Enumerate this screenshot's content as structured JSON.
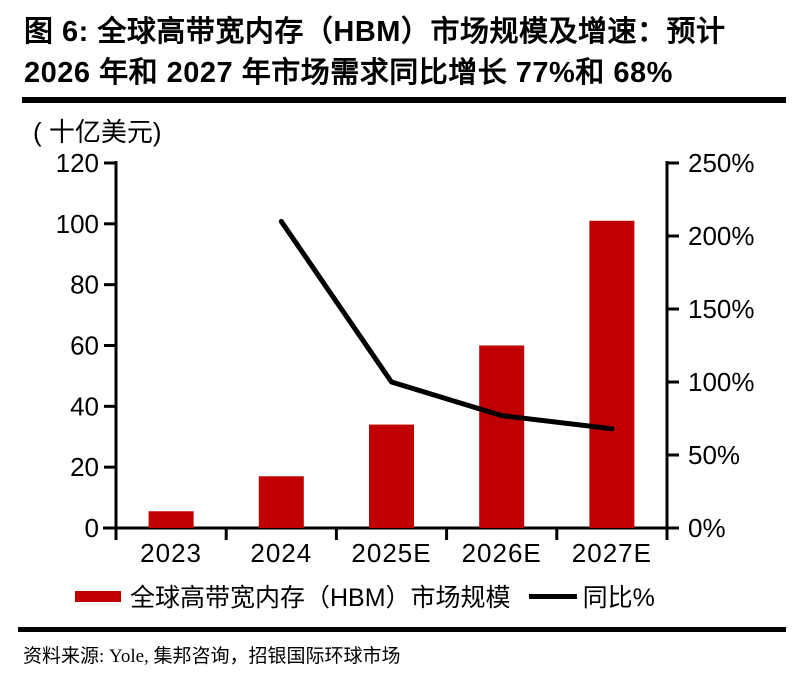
{
  "page": {
    "title_line1": "图 6: 全球高带宽内存（HBM）市场规模及增速：预计",
    "title_line2": "2026 年和 2027 年市场需求同比增长 77%和 68%",
    "source": "资料来源: Yole, 集邦咨询，招银国际环球市场"
  },
  "legend": {
    "bar_label": "全球高带宽内存（HBM）市场规模",
    "line_label": "同比%"
  },
  "colors": {
    "bar": "#c00000",
    "line": "#000000",
    "axis": "#000000",
    "text": "#000000"
  },
  "chart_data": {
    "type": "bar",
    "title": "全球高带宽内存（HBM）市场规模及增速",
    "categories": [
      "2023",
      "2024",
      "2025E",
      "2026E",
      "2027E"
    ],
    "series": [
      {
        "name": "全球高带宽内存（HBM）市场规模",
        "type": "bar",
        "axis": "left",
        "unit": "十亿美元",
        "values": [
          5.5,
          17,
          34,
          60,
          101
        ],
        "color": "#c00000"
      },
      {
        "name": "同比%",
        "type": "line",
        "axis": "right",
        "unit": "%",
        "values": [
          null,
          210,
          100,
          77,
          68
        ],
        "color": "#000000"
      }
    ],
    "left_axis": {
      "label": "( 十亿美元)",
      "min": 0,
      "max": 120,
      "ticks": [
        0,
        20,
        40,
        60,
        80,
        100,
        120
      ]
    },
    "right_axis": {
      "min": 0,
      "max": 250,
      "ticks": [
        0,
        50,
        100,
        150,
        200,
        250
      ],
      "tick_suffix": "%"
    },
    "grid": false,
    "legend_position": "bottom"
  }
}
